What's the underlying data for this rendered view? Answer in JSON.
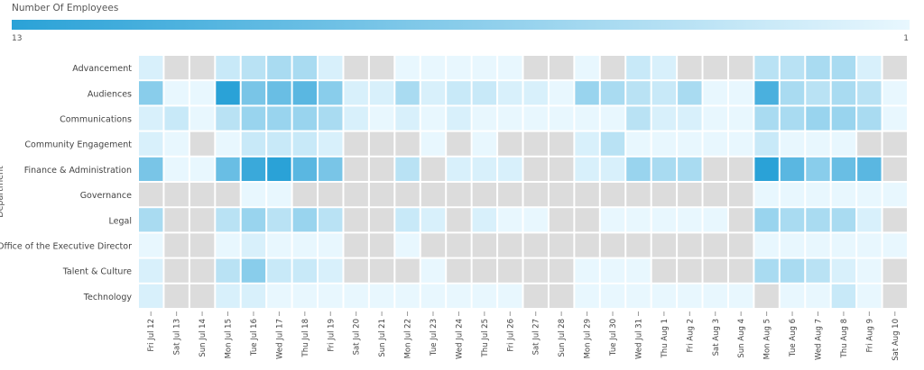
{
  "chart_data": {
    "type": "heatmap",
    "ylabel": "Department",
    "xlabel": "",
    "legend": {
      "title": "Number Of Employees",
      "min": 1,
      "max": 13,
      "min_label": "1",
      "max_label": "13",
      "placement": "top"
    },
    "colors": {
      "low": "#e8f7fe",
      "high": "#2aa2d7",
      "empty": "#dcdcdc"
    },
    "x": [
      "Fri Jul 12",
      "Sat Jul 13",
      "Sun Jul 14",
      "Mon Jul 15",
      "Tue Jul 16",
      "Wed Jul 17",
      "Thu Jul 18",
      "Fri Jul 19",
      "Sat Jul 20",
      "Sun Jul 21",
      "Mon Jul 22",
      "Tue Jul 23",
      "Wed Jul 24",
      "Thu Jul 25",
      "Fri Jul 26",
      "Sat Jul 27",
      "Sun Jul 28",
      "Mon Jul 29",
      "Tue Jul 30",
      "Wed Jul 31",
      "Thu Aug 1",
      "Fri Aug 2",
      "Sat Aug 3",
      "Sun Aug 4",
      "Mon Aug 5",
      "Tue Aug 6",
      "Wed Aug 7",
      "Thu Aug 8",
      "Fri Aug 9",
      "Sat Aug 10"
    ],
    "y": [
      "Advancement",
      "Audiences",
      "Communications",
      "Community Engagement",
      "Finance & Administration",
      "Governance",
      "Legal",
      "Office of the Executive Director",
      "Talent & Culture",
      "Technology"
    ],
    "values": [
      [
        2,
        null,
        null,
        3,
        4,
        5,
        5,
        2,
        null,
        null,
        1,
        1,
        1,
        1,
        1,
        null,
        null,
        1,
        null,
        3,
        2,
        null,
        null,
        null,
        4,
        4,
        5,
        5,
        2,
        null
      ],
      [
        7,
        1,
        1,
        13,
        8,
        9,
        10,
        7,
        2,
        2,
        5,
        2,
        3,
        3,
        2,
        2,
        1,
        6,
        5,
        4,
        3,
        5,
        1,
        1,
        11,
        5,
        4,
        5,
        4,
        1
      ],
      [
        2,
        3,
        1,
        4,
        6,
        6,
        6,
        5,
        2,
        1,
        2,
        1,
        2,
        1,
        1,
        1,
        1,
        1,
        1,
        4,
        2,
        2,
        1,
        1,
        5,
        5,
        6,
        6,
        5,
        1
      ],
      [
        2,
        1,
        null,
        1,
        3,
        3,
        3,
        2,
        null,
        null,
        null,
        1,
        null,
        1,
        null,
        null,
        null,
        2,
        4,
        1,
        1,
        1,
        1,
        1,
        3,
        1,
        1,
        1,
        null,
        null
      ],
      [
        8,
        1,
        1,
        9,
        12,
        13,
        10,
        8,
        null,
        null,
        4,
        null,
        2,
        2,
        2,
        null,
        null,
        2,
        2,
        6,
        5,
        5,
        null,
        null,
        13,
        10,
        7,
        9,
        10,
        null
      ],
      [
        null,
        null,
        null,
        null,
        1,
        1,
        null,
        null,
        null,
        null,
        null,
        null,
        null,
        null,
        null,
        null,
        null,
        null,
        null,
        null,
        null,
        null,
        null,
        null,
        1,
        1,
        1,
        1,
        1,
        1
      ],
      [
        5,
        null,
        null,
        4,
        6,
        4,
        6,
        4,
        null,
        null,
        3,
        2,
        null,
        2,
        1,
        1,
        null,
        null,
        1,
        1,
        1,
        1,
        1,
        null,
        6,
        5,
        5,
        5,
        2,
        null
      ],
      [
        1,
        null,
        null,
        1,
        2,
        1,
        1,
        1,
        null,
        null,
        1,
        null,
        null,
        null,
        null,
        null,
        null,
        null,
        null,
        null,
        null,
        null,
        null,
        null,
        1,
        1,
        1,
        1,
        1,
        1
      ],
      [
        2,
        null,
        null,
        4,
        7,
        3,
        3,
        2,
        null,
        null,
        null,
        1,
        null,
        null,
        null,
        null,
        null,
        1,
        1,
        1,
        null,
        null,
        null,
        null,
        5,
        5,
        4,
        2,
        1,
        null
      ],
      [
        2,
        null,
        null,
        2,
        2,
        1,
        1,
        1,
        1,
        1,
        1,
        1,
        1,
        1,
        1,
        null,
        null,
        1,
        1,
        1,
        1,
        1,
        1,
        1,
        null,
        1,
        1,
        3,
        1,
        null
      ]
    ]
  }
}
